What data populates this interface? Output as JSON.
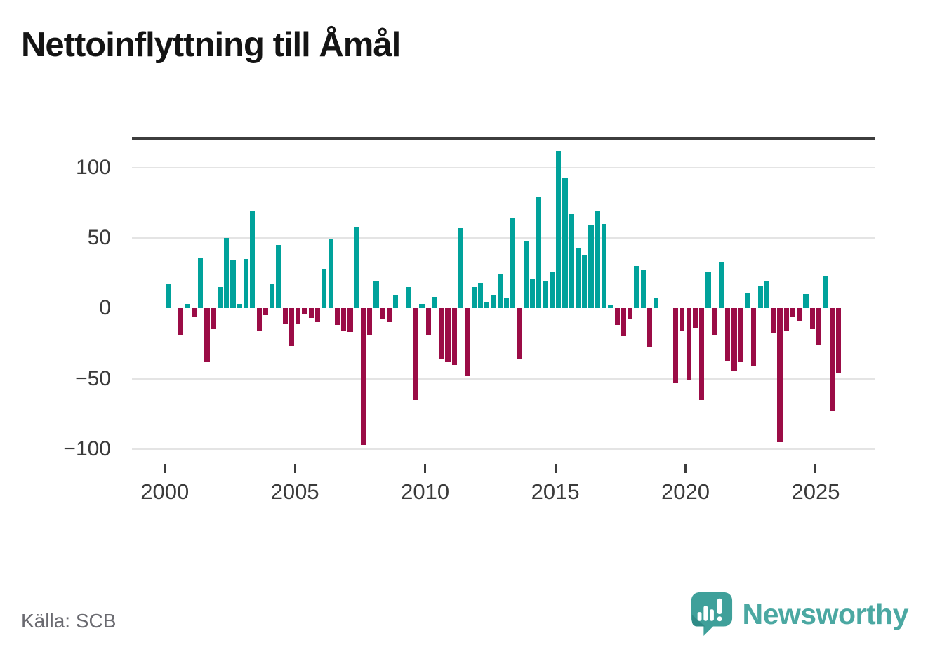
{
  "title": "Nettoinflyttning till Åmål",
  "source": "Källa: SCB",
  "brand": {
    "text": "Newsworthy"
  },
  "colors": {
    "positive": "#00a29b",
    "negative": "#9b0c46",
    "zero_axis": "#3d3d3d",
    "gridline": "#e4e4e4",
    "brand_teal": "#4ba8a2",
    "logo_bubble": "#3fa09a",
    "logo_fold": "#2e8b86"
  },
  "chart_data": {
    "type": "bar",
    "title": "Nettoinflyttning till Åmål",
    "ylabel": "",
    "xlabel": "",
    "unit": "personer (nettoinflyttning per kvartal)",
    "frequency": "quarterly",
    "grid": true,
    "legend": false,
    "y_axis": {
      "ticks": [
        100,
        50,
        0,
        -50,
        -100
      ],
      "labels": [
        "100",
        "50",
        "0",
        "−50",
        "−100"
      ],
      "lim": [
        -110,
        119
      ]
    },
    "x_axis": {
      "tick_years": [
        2000,
        2005,
        2010,
        2015,
        2020,
        2025
      ],
      "range": [
        "2000-Q1",
        "2025-Q4"
      ]
    },
    "series_name": "Nettoinflyttning",
    "values_by_year": {
      "2000": [
        17,
        0,
        -19,
        3
      ],
      "2001": [
        -6,
        36,
        -38,
        -15
      ],
      "2002": [
        15,
        50,
        34,
        3
      ],
      "2003": [
        35,
        69,
        -16,
        -5
      ],
      "2004": [
        17,
        45,
        -11,
        -27
      ],
      "2005": [
        -11,
        -4,
        -7,
        -10
      ],
      "2006": [
        28,
        49,
        -12,
        -16
      ],
      "2007": [
        -17,
        58,
        -97,
        -19
      ],
      "2008": [
        19,
        -8,
        -10,
        9
      ],
      "2009": [
        0,
        15,
        -65,
        3
      ],
      "2010": [
        -19,
        8,
        -36,
        -38
      ],
      "2011": [
        -40,
        57,
        -48,
        15
      ],
      "2012": [
        18,
        4,
        9,
        24
      ],
      "2013": [
        7,
        64,
        -36,
        48
      ],
      "2014": [
        21,
        79,
        19,
        26
      ],
      "2015": [
        112,
        93,
        67,
        43
      ],
      "2016": [
        38,
        59,
        69,
        60
      ],
      "2017": [
        2,
        -12,
        -20,
        -8
      ],
      "2018": [
        30,
        27,
        -28,
        7
      ],
      "2019": [
        0,
        0,
        -53,
        -16
      ],
      "2020": [
        -51,
        -14,
        -65,
        26
      ],
      "2021": [
        -19,
        33,
        -37,
        -44
      ],
      "2022": [
        -38,
        11,
        -41,
        16
      ],
      "2023": [
        19,
        -18,
        -95,
        -16
      ],
      "2024": [
        -6,
        -9,
        10,
        -15
      ],
      "2025": [
        -26,
        23,
        -73,
        -46
      ]
    }
  }
}
